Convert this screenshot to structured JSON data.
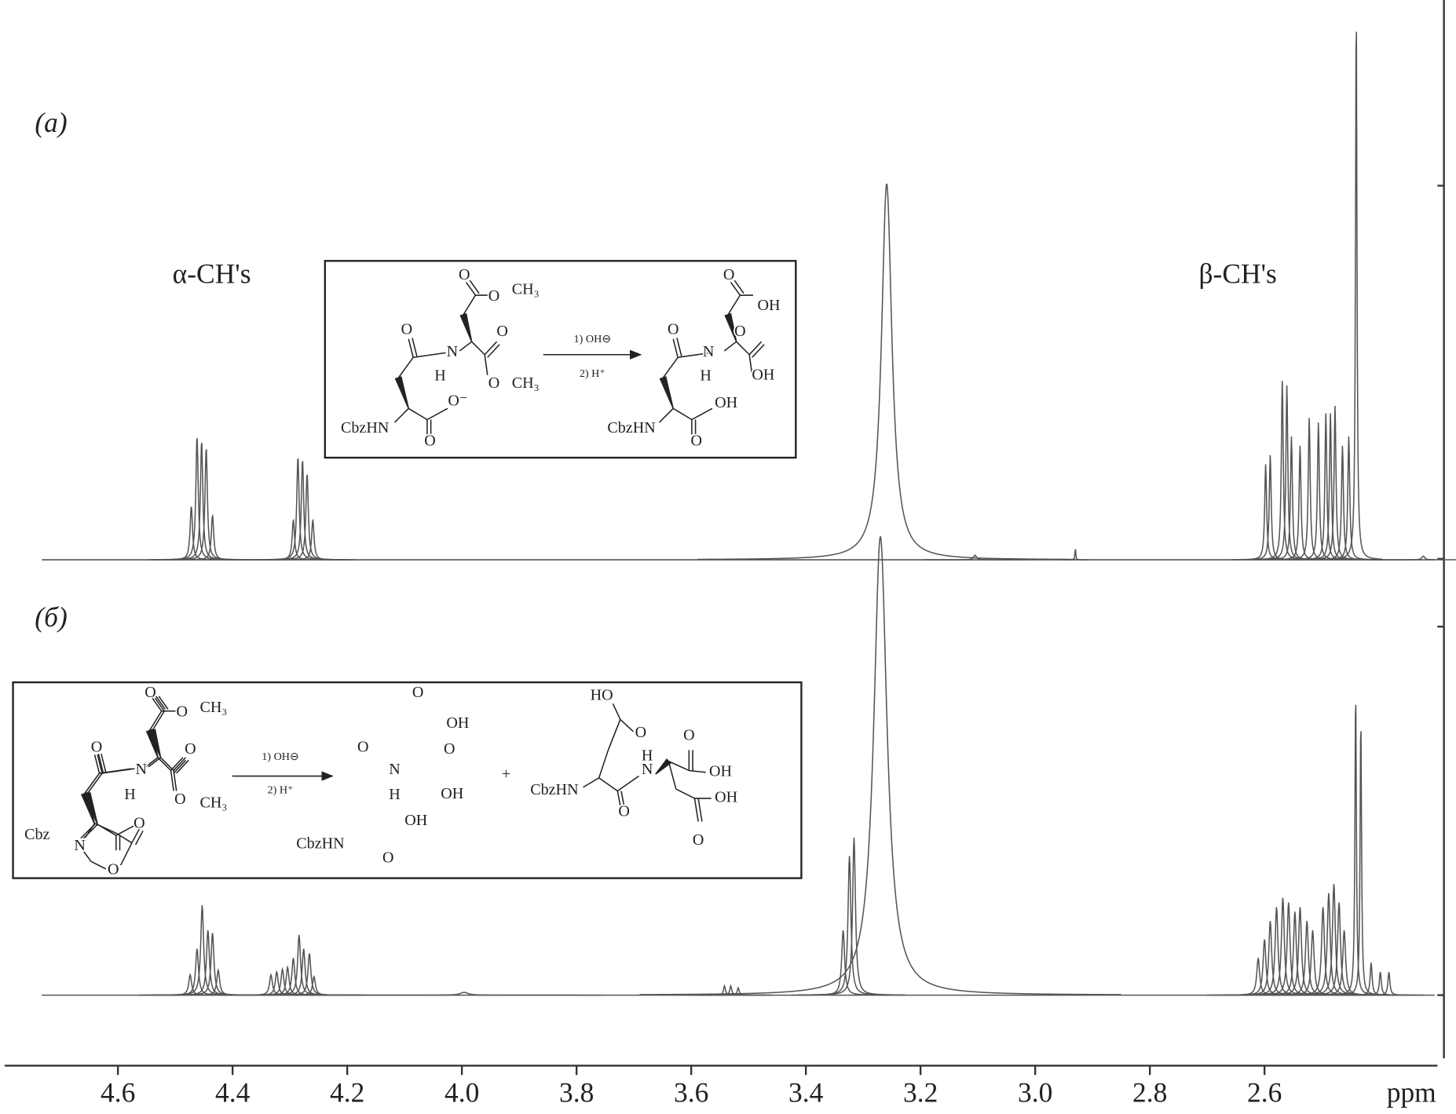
{
  "chart_data": {
    "type": "nmr",
    "xlabel": "ppm",
    "xlim": [
      4.8,
      2.3
    ],
    "xticks": [
      4.6,
      4.4,
      4.2,
      {
        "value": 4,
        "label": "4.0"
      },
      3.8,
      3.6,
      3.4,
      3.2,
      {
        "value": 3,
        "label": "3.0"
      },
      2.8,
      2.6
    ],
    "annotations": {
      "alpha": "α-CH's",
      "beta": "β-CH's"
    },
    "series": [
      {
        "name": "(a)",
        "color": "#555555",
        "x": [
          4.472,
          4.462,
          4.454,
          4.446,
          4.435,
          4.294,
          4.286,
          4.278,
          4.27,
          4.26,
          3.259,
          3.105,
          2.93,
          2.598,
          2.59,
          2.569,
          2.561,
          2.553,
          2.538,
          2.522,
          2.506,
          2.493,
          2.485,
          2.477,
          2.464,
          2.453,
          2.44,
          2.323
        ],
        "values": [
          58,
          133,
          128,
          121,
          48,
          43,
          111,
          108,
          93,
          43,
          405,
          5,
          13,
          103,
          113,
          193,
          188,
          133,
          123,
          153,
          148,
          158,
          158,
          166,
          123,
          133,
          600,
          4
        ],
        "widths": [
          0.0025,
          0.0025,
          0.0025,
          0.0025,
          0.0025,
          0.0025,
          0.0025,
          0.0025,
          0.0025,
          0.0025,
          0.011,
          0.003,
          0.0008,
          0.002,
          0.002,
          0.002,
          0.002,
          0.002,
          0.002,
          0.002,
          0.002,
          0.002,
          0.002,
          0.002,
          0.002,
          0.002,
          0.0015,
          0.003
        ]
      },
      {
        "name": "(б)",
        "color": "#555555",
        "x": [
          4.474,
          4.462,
          4.453,
          4.443,
          4.435,
          4.425,
          4.333,
          4.323,
          4.313,
          4.304,
          4.294,
          4.284,
          4.276,
          4.266,
          4.258,
          3.996,
          3.542,
          3.531,
          3.518,
          3.335,
          3.324,
          3.316,
          3.27,
          2.611,
          2.6,
          2.59,
          2.579,
          2.568,
          2.558,
          2.547,
          2.538,
          2.526,
          2.516,
          2.498,
          2.488,
          2.479,
          2.47,
          2.461,
          2.441,
          2.432,
          2.414,
          2.398,
          2.383
        ],
        "values": [
          22,
          50,
          97,
          70,
          67,
          27,
          22,
          25,
          28,
          30,
          40,
          65,
          50,
          45,
          20,
          3,
          10,
          10,
          8,
          70,
          150,
          170,
          494,
          40,
          60,
          80,
          95,
          105,
          100,
          90,
          95,
          80,
          70,
          95,
          110,
          120,
          100,
          70,
          330,
          300,
          35,
          25,
          25
        ],
        "widths": [
          0.003,
          0.003,
          0.003,
          0.003,
          0.003,
          0.003,
          0.003,
          0.003,
          0.003,
          0.003,
          0.003,
          0.003,
          0.003,
          0.003,
          0.003,
          0.008,
          0.002,
          0.002,
          0.002,
          0.003,
          0.003,
          0.003,
          0.014,
          0.003,
          0.003,
          0.003,
          0.003,
          0.003,
          0.003,
          0.003,
          0.003,
          0.003,
          0.003,
          0.003,
          0.003,
          0.003,
          0.003,
          0.003,
          0.0015,
          0.0015,
          0.002,
          0.002,
          0.002
        ]
      }
    ],
    "schemes": [
      {
        "labels": [
          "O",
          "O",
          "CH₃",
          "O",
          "O",
          "N",
          "H",
          "O",
          "CH₃",
          "O⁻",
          "CbzHN",
          "O",
          "1) OH⊖",
          "2) H⁺",
          "O",
          "OH",
          "O",
          "O",
          "N",
          "H",
          "OH",
          "OH",
          "CbzHN",
          "O"
        ]
      },
      {
        "labels": [
          "O",
          "O",
          "CH₃",
          "O",
          "O",
          "N",
          "H",
          "O",
          "CH₃",
          "Cbz",
          "N",
          "O",
          "O",
          "1) OH⊖",
          "2) H⁺",
          "O",
          "OH",
          "O",
          "N",
          "H",
          "O",
          "OH",
          "OH",
          "CbzHN",
          "O",
          "+",
          "HO",
          "O",
          "H",
          "N",
          "CbzHN",
          "O",
          "OH",
          "O",
          "OH",
          "O"
        ]
      }
    ]
  }
}
